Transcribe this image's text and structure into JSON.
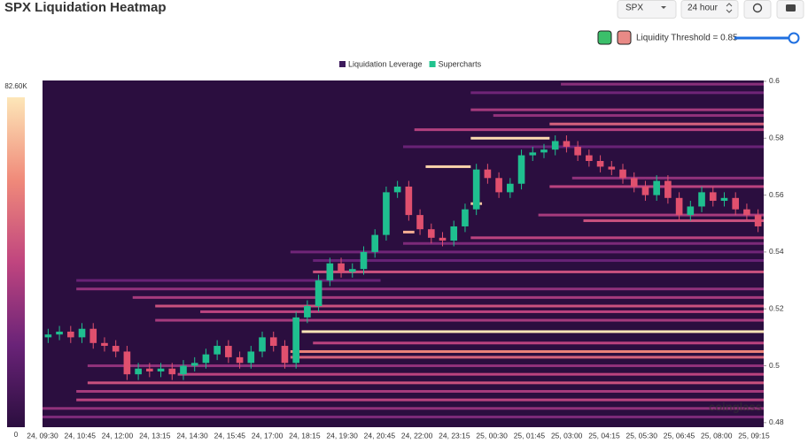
{
  "chart_data": {
    "type": "liquidation-heatmap",
    "title": "SPX Liquidation Heatmap",
    "symbol": "SPX",
    "period": "24 hour",
    "threshold_label": "Liquidity Threshold = 0.85",
    "watermark": "coinglass",
    "legend": [
      {
        "name": "Liquidation Leverage",
        "color": "#3d1a5c"
      },
      {
        "name": "Supercharts",
        "color": "#22c38e"
      }
    ],
    "up_color": "#1fbf8f",
    "down_color": "#e0506e",
    "background": "#2b0e3f",
    "color_scale": [
      "#2b0e3f",
      "#6a2378",
      "#c0457f",
      "#f08a7a",
      "#fde7b8"
    ],
    "clim": [
      0,
      82.6
    ],
    "colorbar_ticks": [
      {
        "value": 82.6,
        "label": "82.60K"
      },
      0
    ],
    "ylim": [
      0.4784,
      0.6003
    ],
    "yticks": [
      0.6,
      0.58,
      0.56,
      0.54,
      0.52,
      0.5,
      0.48
    ],
    "x_labels": [
      "24, 09:30",
      "24, 10:45",
      "24, 12:00",
      "24, 13:15",
      "24, 14:30",
      "24, 15:45",
      "24, 17:00",
      "24, 18:15",
      "24, 19:30",
      "24, 20:45",
      "24, 22:00",
      "24, 23:15",
      "25, 00:30",
      "25, 01:45",
      "25, 03:00",
      "25, 04:15",
      "25, 05:30",
      "25, 06:45",
      "25, 08:00",
      "25, 09:15"
    ],
    "candles": {
      "open": [
        0.51,
        0.511,
        0.512,
        0.51,
        0.513,
        0.508,
        0.507,
        0.505,
        0.497,
        0.499,
        0.498,
        0.499,
        0.497,
        0.5,
        0.501,
        0.504,
        0.507,
        0.503,
        0.501,
        0.505,
        0.51,
        0.507,
        0.501,
        0.517,
        0.521,
        0.53,
        0.536,
        0.533,
        0.534,
        0.54,
        0.546,
        0.561,
        0.563,
        0.553,
        0.548,
        0.545,
        0.544,
        0.549,
        0.555,
        0.569,
        0.566,
        0.561,
        0.564,
        0.574,
        0.575,
        0.576,
        0.579,
        0.577,
        0.574,
        0.572,
        0.57,
        0.569,
        0.566,
        0.563,
        0.56,
        0.565,
        0.559,
        0.553,
        0.556,
        0.561,
        0.558,
        0.559,
        0.555,
        0.553
      ],
      "high": [
        0.513,
        0.514,
        0.514,
        0.515,
        0.515,
        0.51,
        0.509,
        0.507,
        0.501,
        0.501,
        0.501,
        0.501,
        0.502,
        0.503,
        0.506,
        0.509,
        0.509,
        0.505,
        0.507,
        0.512,
        0.512,
        0.509,
        0.519,
        0.523,
        0.532,
        0.538,
        0.538,
        0.536,
        0.542,
        0.548,
        0.563,
        0.565,
        0.565,
        0.555,
        0.55,
        0.547,
        0.551,
        0.557,
        0.571,
        0.571,
        0.568,
        0.566,
        0.576,
        0.577,
        0.578,
        0.581,
        0.581,
        0.579,
        0.576,
        0.574,
        0.572,
        0.571,
        0.568,
        0.565,
        0.567,
        0.567,
        0.561,
        0.558,
        0.563,
        0.563,
        0.561,
        0.561,
        0.557,
        0.555
      ],
      "low": [
        0.508,
        0.509,
        0.508,
        0.508,
        0.506,
        0.505,
        0.503,
        0.495,
        0.495,
        0.496,
        0.496,
        0.495,
        0.495,
        0.498,
        0.499,
        0.502,
        0.501,
        0.499,
        0.499,
        0.503,
        0.505,
        0.499,
        0.499,
        0.515,
        0.519,
        0.528,
        0.531,
        0.531,
        0.532,
        0.538,
        0.544,
        0.559,
        0.551,
        0.546,
        0.543,
        0.542,
        0.542,
        0.547,
        0.553,
        0.564,
        0.559,
        0.559,
        0.562,
        0.572,
        0.573,
        0.574,
        0.575,
        0.572,
        0.57,
        0.568,
        0.567,
        0.564,
        0.561,
        0.558,
        0.558,
        0.557,
        0.551,
        0.551,
        0.554,
        0.556,
        0.556,
        0.553,
        0.551,
        0.547
      ],
      "close": [
        0.511,
        0.512,
        0.51,
        0.513,
        0.508,
        0.507,
        0.505,
        0.497,
        0.499,
        0.498,
        0.499,
        0.497,
        0.5,
        0.501,
        0.504,
        0.507,
        0.503,
        0.501,
        0.505,
        0.51,
        0.507,
        0.501,
        0.517,
        0.521,
        0.53,
        0.536,
        0.533,
        0.534,
        0.54,
        0.546,
        0.561,
        0.563,
        0.553,
        0.548,
        0.545,
        0.544,
        0.549,
        0.555,
        0.569,
        0.566,
        0.561,
        0.564,
        0.574,
        0.575,
        0.576,
        0.579,
        0.577,
        0.574,
        0.572,
        0.57,
        0.569,
        0.566,
        0.563,
        0.56,
        0.565,
        0.559,
        0.553,
        0.556,
        0.561,
        0.558,
        0.559,
        0.555,
        0.553,
        0.549
      ]
    },
    "bands": {
      "prices": [
        0.599,
        0.596,
        0.59,
        0.588,
        0.585,
        0.583,
        0.58,
        0.577,
        0.57,
        0.566,
        0.563,
        0.557,
        0.553,
        0.551,
        0.547,
        0.545,
        0.543,
        0.54,
        0.537,
        0.533,
        0.53,
        0.527,
        0.524,
        0.521,
        0.519,
        0.516,
        0.512,
        0.508,
        0.505,
        0.503,
        0.5,
        0.497,
        0.494,
        0.491,
        0.488,
        0.485,
        0.482
      ],
      "starts": [
        46,
        38,
        38,
        40,
        45,
        33,
        38,
        32,
        34,
        47,
        45,
        38,
        44,
        48,
        32,
        38,
        32,
        22,
        24,
        24,
        3,
        3,
        8,
        10,
        14,
        10,
        23,
        24,
        22,
        22,
        4,
        12,
        4,
        3,
        3,
        0,
        0
      ],
      "ends": [
        64,
        64,
        64,
        64,
        64,
        64,
        45,
        64,
        38,
        64,
        64,
        39,
        64,
        64,
        33,
        64,
        64,
        64,
        64,
        64,
        30,
        64,
        64,
        64,
        64,
        64,
        64,
        64,
        64,
        64,
        64,
        64,
        64,
        64,
        64,
        64,
        64
      ],
      "intensities": [
        28,
        22,
        35,
        30,
        50,
        38,
        80,
        20,
        78,
        30,
        40,
        75,
        35,
        45,
        70,
        40,
        25,
        22,
        20,
        45,
        20,
        30,
        35,
        45,
        40,
        35,
        82,
        40,
        60,
        50,
        30,
        40,
        45,
        35,
        40,
        30,
        25
      ]
    }
  }
}
